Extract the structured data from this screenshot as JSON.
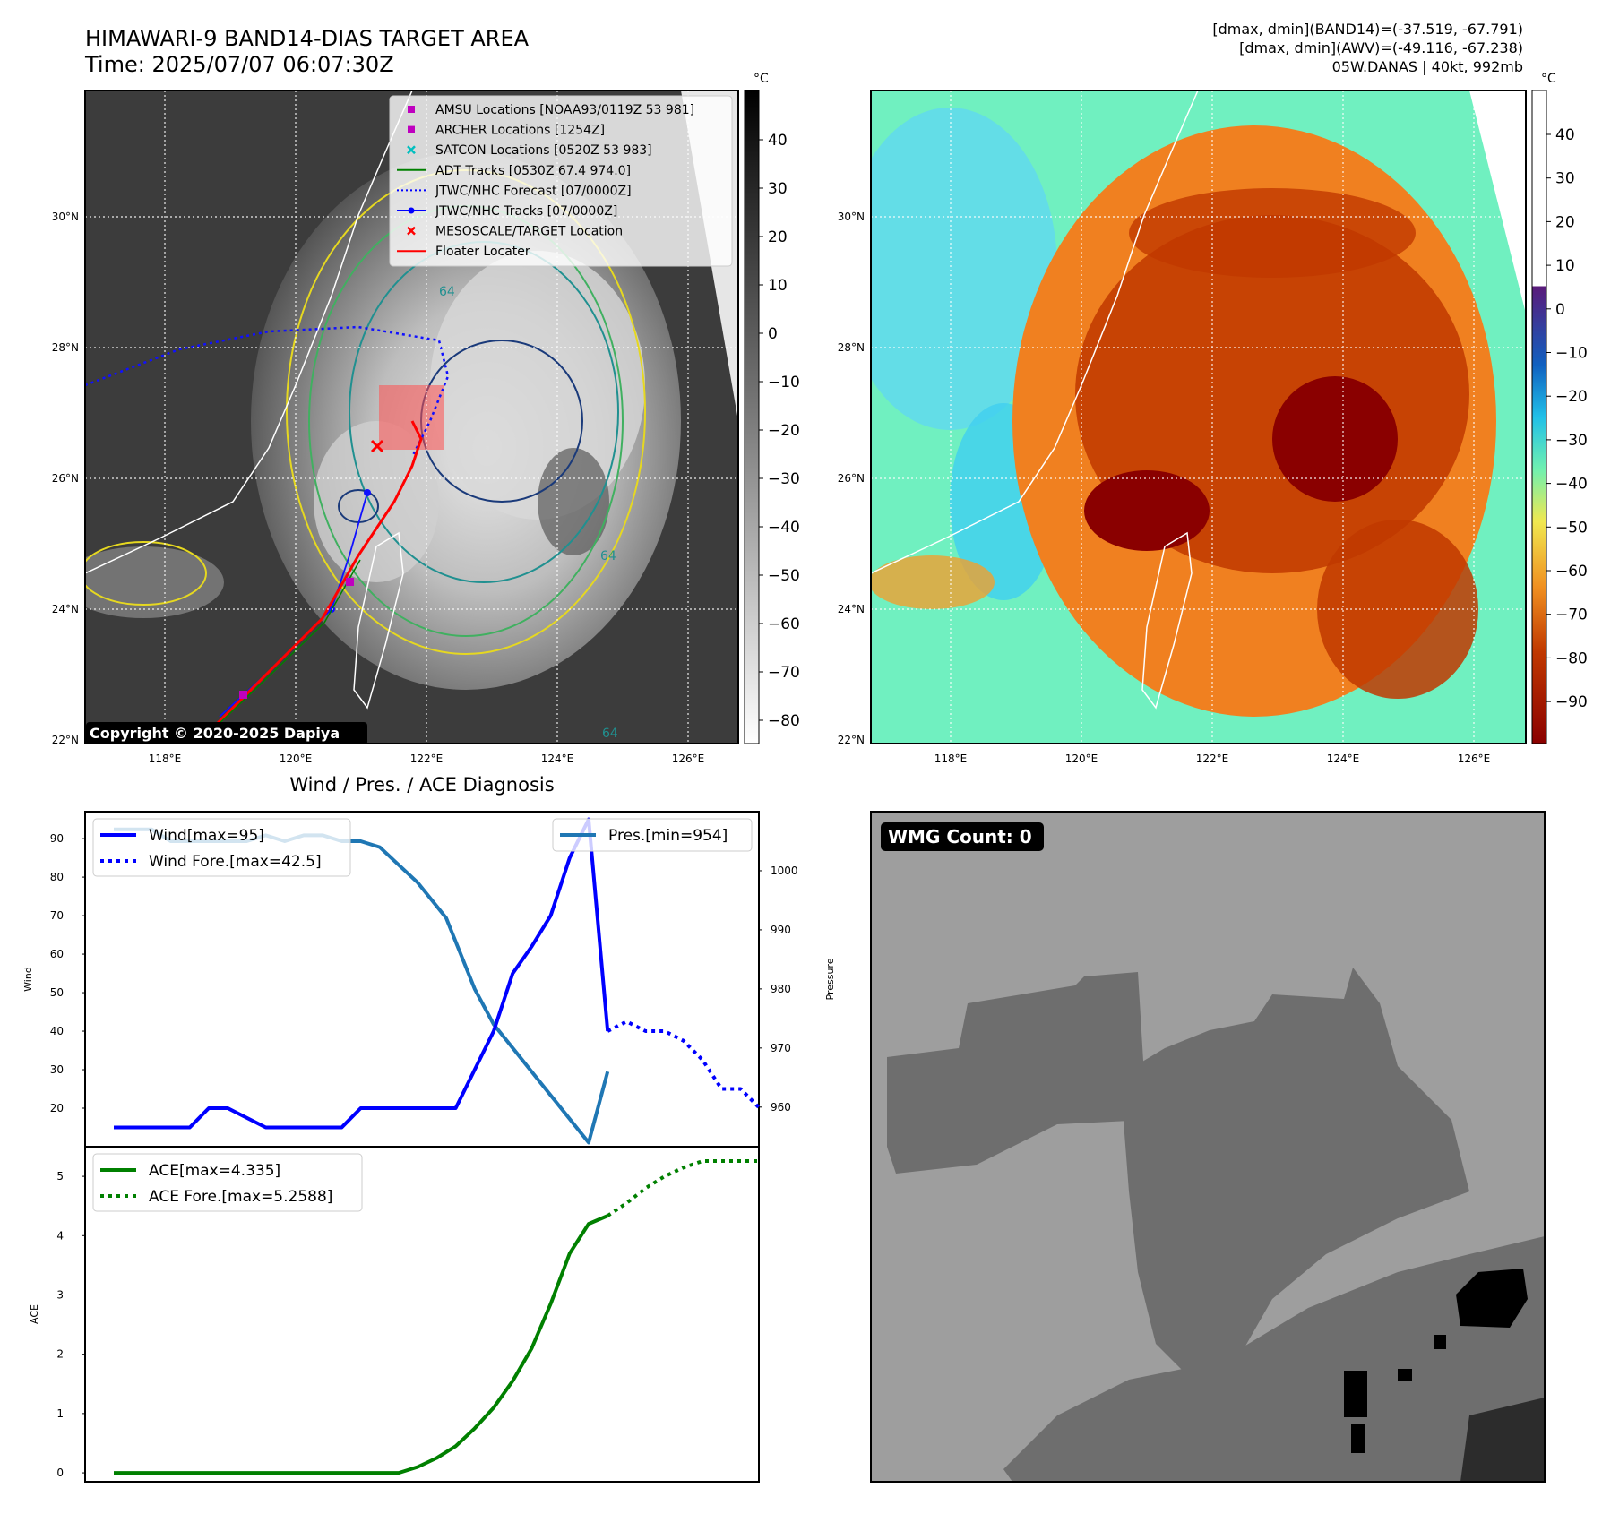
{
  "header": {
    "title_line1": "HIMAWARI-9 BAND14-DIAS TARGET AREA",
    "title_line2": "Time: 2025/07/07 06:07:30Z",
    "stats_line1": "[dmax, dmin](BAND14)=(-37.519, -67.791)",
    "stats_line2": "[dmax, dmin](AWV)=(-49.116, -67.238)",
    "stats_line3": "05W.DANAS | 40kt, 992mb"
  },
  "ir_map": {
    "lon_ticks": [
      "118°E",
      "120°E",
      "122°E",
      "124°E",
      "126°E"
    ],
    "lat_ticks": [
      "30°N",
      "28°N",
      "26°N",
      "24°N",
      "22°N"
    ],
    "colorbar_unit": "°C",
    "colorbar_ticks": [
      "40",
      "30",
      "20",
      "10",
      "0",
      "−10",
      "−20",
      "−30",
      "−40",
      "−50",
      "−60",
      "−70",
      "−80"
    ],
    "copyright": "Copyright © 2020-2025 Dapiya",
    "legend": [
      {
        "label": "AMSU Locations [NOAA93/0119Z 53 981]",
        "marker": "square",
        "color": "#bf00bf"
      },
      {
        "label": "ARCHER Locations [1254Z]",
        "marker": "square",
        "color": "#bf00bf"
      },
      {
        "label": "SATCON Locations [0520Z 53 983]",
        "marker": "x",
        "color": "#00bfbf"
      },
      {
        "label": "ADT Tracks [0530Z 67.4 974.0]",
        "marker": "line",
        "color": "#008000"
      },
      {
        "label": "JTWC/NHC Forecast [07/0000Z]",
        "marker": "dotted",
        "color": "#0000ff"
      },
      {
        "label": "JTWC/NHC Tracks [07/0000Z]",
        "marker": "line-dot",
        "color": "#0000ff"
      },
      {
        "label": "MESOSCALE/TARGET Location",
        "marker": "x",
        "color": "#ff0000"
      },
      {
        "label": "Floater Locater",
        "marker": "line",
        "color": "#ff0000"
      }
    ],
    "contour_labels": [
      "64",
      "64",
      "64"
    ]
  },
  "awv_map": {
    "lon_ticks": [
      "118°E",
      "120°E",
      "122°E",
      "124°E",
      "126°E"
    ],
    "lat_ticks": [
      "30°N",
      "28°N",
      "26°N",
      "24°N",
      "22°N"
    ],
    "colorbar_unit": "°C",
    "colorbar_ticks": [
      "40",
      "30",
      "20",
      "10",
      "0",
      "−10",
      "−20",
      "−30",
      "−40",
      "−50",
      "−60",
      "−70",
      "−80",
      "−90"
    ]
  },
  "wmg": {
    "label": "WMG Count: 0"
  },
  "chart_data": [
    {
      "type": "line",
      "title": "Wind / Pres. / ACE Diagnosis",
      "ylabel": "Wind",
      "y2label": "Pressure",
      "ylim": [
        10,
        97
      ],
      "yticks": [
        "20",
        "30",
        "40",
        "50",
        "60",
        "70",
        "80",
        "90"
      ],
      "y2lim": [
        953.3,
        1010
      ],
      "y2ticks": [
        "960",
        "970",
        "980",
        "990",
        "1000"
      ],
      "series": [
        {
          "name": "Wind[max=95]",
          "style": "solid",
          "color": "#0000ff",
          "x": [
            0,
            2,
            4,
            5,
            6,
            8,
            9,
            10,
            12,
            13,
            14,
            16,
            18,
            20,
            21,
            22,
            23,
            24,
            25,
            26
          ],
          "y": [
            15,
            15,
            15,
            20,
            20,
            15,
            15,
            15,
            15,
            20,
            20,
            20,
            20,
            40,
            55,
            62,
            70,
            85,
            95,
            40
          ]
        },
        {
          "name": "Wind Fore.[max=42.5]",
          "style": "dotted",
          "color": "#0000ff",
          "x": [
            26,
            27,
            28,
            29,
            30,
            31,
            32,
            33,
            34
          ],
          "y": [
            40,
            42.5,
            40,
            40,
            37.5,
            32.5,
            25,
            25,
            20
          ]
        },
        {
          "name": "Pres.[min=954]",
          "style": "solid",
          "color": "#1f77b4",
          "x": [
            0,
            2,
            3,
            4,
            5,
            6,
            7,
            8,
            9,
            10,
            11,
            12,
            13,
            14,
            15,
            16,
            17,
            17.5,
            18,
            19,
            20,
            21,
            22,
            23,
            24,
            25,
            26
          ],
          "y": [
            1007,
            1007,
            1005,
            1005,
            1005,
            1005,
            1005,
            1006,
            1005,
            1006,
            1006,
            1005,
            1005,
            1004,
            1001,
            998,
            994,
            992,
            988,
            980,
            974,
            970,
            966,
            962,
            958,
            954,
            966
          ]
        }
      ]
    },
    {
      "type": "line",
      "ylabel": "ACE",
      "ylim": [
        -0.15,
        5.5
      ],
      "yticks": [
        "0",
        "1",
        "2",
        "3",
        "4",
        "5"
      ],
      "series": [
        {
          "name": "ACE[max=4.335]",
          "style": "solid",
          "color": "#008000",
          "x": [
            0,
            15,
            16,
            17,
            18,
            19,
            20,
            21,
            22,
            23,
            24,
            25,
            26
          ],
          "y": [
            0,
            0,
            0.1,
            0.25,
            0.45,
            0.75,
            1.1,
            1.55,
            2.1,
            2.85,
            3.7,
            4.2,
            4.335
          ]
        },
        {
          "name": "ACE Fore.[max=5.2588]",
          "style": "dotted",
          "color": "#008000",
          "x": [
            26,
            27,
            28,
            29,
            30,
            31,
            34
          ],
          "y": [
            4.335,
            4.55,
            4.8,
            5.0,
            5.15,
            5.2588,
            5.2588
          ]
        }
      ]
    }
  ]
}
